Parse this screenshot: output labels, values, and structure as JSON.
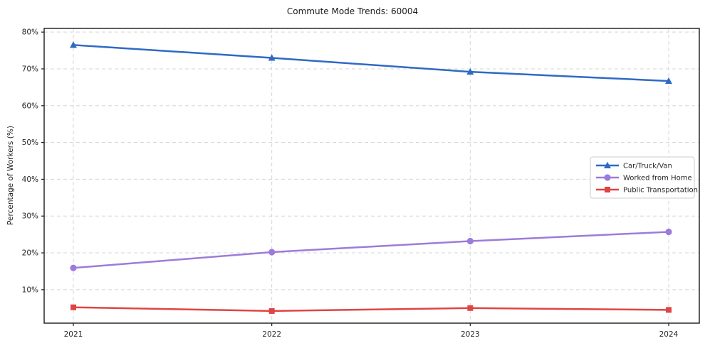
{
  "title": "Commute Mode Trends: 60004",
  "chart_data": {
    "type": "line",
    "title": "Commute Mode Trends: 60004",
    "xlabel": "",
    "ylabel": "Percentage of Workers (%)",
    "categories": [
      "2021",
      "2022",
      "2023",
      "2024"
    ],
    "y_ticks": [
      10,
      20,
      30,
      40,
      50,
      60,
      70,
      80
    ],
    "y_tick_labels": [
      "10%",
      "20%",
      "30%",
      "40%",
      "50%",
      "60%",
      "70%",
      "80%"
    ],
    "ylim": [
      0.9,
      81.0
    ],
    "grid": true,
    "grid_style": "dashed",
    "legend_position": "center-right",
    "series": [
      {
        "name": "Car/Truck/Van",
        "color": "#2e6ac4",
        "marker": "triangle",
        "values": [
          76.5,
          73.0,
          69.2,
          66.7
        ]
      },
      {
        "name": "Worked from Home",
        "color": "#9d7bdb",
        "marker": "circle",
        "values": [
          15.9,
          20.2,
          23.2,
          25.7
        ]
      },
      {
        "name": "Public Transportation",
        "color": "#e04444",
        "marker": "square",
        "values": [
          5.2,
          4.2,
          5.0,
          4.5
        ]
      }
    ]
  },
  "colors": {
    "grid": "#d5d5d5",
    "spine": "#1a1a1a",
    "tick_text": "#262626",
    "legend_border": "#cccccc",
    "legend_bg": "#ffffff"
  }
}
